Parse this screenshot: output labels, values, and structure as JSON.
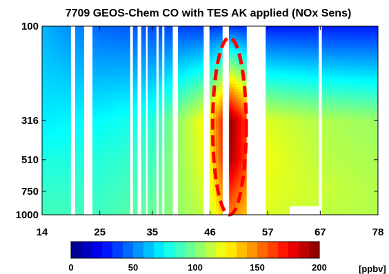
{
  "chart_data": {
    "type": "heatmap",
    "title": "7709 GEOS-Chem CO with TES AK applied (NOx Sens)",
    "xlabel": "",
    "ylabel": "",
    "x_ticks": [
      "14",
      "25",
      "35",
      "46",
      "57",
      "67",
      "78"
    ],
    "x_tick_values": [
      14,
      25,
      35,
      46,
      57,
      67,
      78
    ],
    "xlim": [
      14,
      78
    ],
    "y_ticks": [
      "100",
      "316",
      "510",
      "750",
      "1000"
    ],
    "y_tick_values": [
      100,
      316,
      510,
      750,
      1000
    ],
    "ylim": [
      100,
      1000
    ],
    "y_scale": "log",
    "colorbar": {
      "ticks": [
        "0",
        "50",
        "100",
        "150",
        "200"
      ],
      "tick_values": [
        0,
        50,
        100,
        150,
        200
      ],
      "range": [
        0,
        200
      ],
      "unit": "[ppbv]",
      "colormap": "jet"
    },
    "missing_columns": [
      [
        19.5,
        20.3
      ],
      [
        22.0,
        23.6
      ],
      [
        30.8,
        31.3
      ],
      [
        32.2,
        32.9
      ],
      [
        33.8,
        34.1
      ],
      [
        35.8,
        36.2
      ],
      [
        36.9,
        37.3
      ],
      [
        38.9,
        39.9
      ],
      [
        44.8,
        45.9
      ],
      [
        48.4,
        49.6
      ],
      [
        53.0,
        56.6
      ],
      [
        66.7,
        67.3
      ]
    ],
    "missing_boxes": [
      [
        61.2,
        66.7,
        900,
        1000
      ]
    ],
    "highlight": {
      "shape": "dashed-ellipse",
      "color": "#ff0000",
      "x_center": 49.7,
      "x_halfwidth": 3.2,
      "y_range": [
        115,
        1000
      ]
    },
    "profiles": [
      {
        "x": 14,
        "values_by_pressure": {
          "100": 60,
          "316": 72,
          "510": 80,
          "750": 85,
          "1000": 88
        }
      },
      {
        "x": 25,
        "values_by_pressure": {
          "100": 45,
          "316": 75,
          "510": 82,
          "750": 85,
          "1000": 88
        }
      },
      {
        "x": 35,
        "values_by_pressure": {
          "100": 40,
          "316": 82,
          "510": 88,
          "750": 92,
          "1000": 95
        }
      },
      {
        "x": 46,
        "values_by_pressure": {
          "100": 35,
          "316": 130,
          "510": 125,
          "750": 120,
          "1000": 115
        }
      },
      {
        "x": 50,
        "values_by_pressure": {
          "100": 35,
          "316": 195,
          "510": 190,
          "750": 165,
          "1000": 150
        }
      },
      {
        "x": 57,
        "values_by_pressure": {
          "100": 30,
          "316": 118,
          "510": 122,
          "750": 120,
          "1000": 118
        }
      },
      {
        "x": 67,
        "values_by_pressure": {
          "100": 30,
          "316": 110,
          "510": 112,
          "750": 115,
          "1000": 112
        }
      },
      {
        "x": 78,
        "values_by_pressure": {
          "100": 30,
          "316": 105,
          "510": 108,
          "750": 110,
          "1000": 110
        }
      }
    ]
  },
  "colors": {
    "highlight": "#ff0000",
    "background": "#ffffff",
    "missing": "#ffffff"
  }
}
